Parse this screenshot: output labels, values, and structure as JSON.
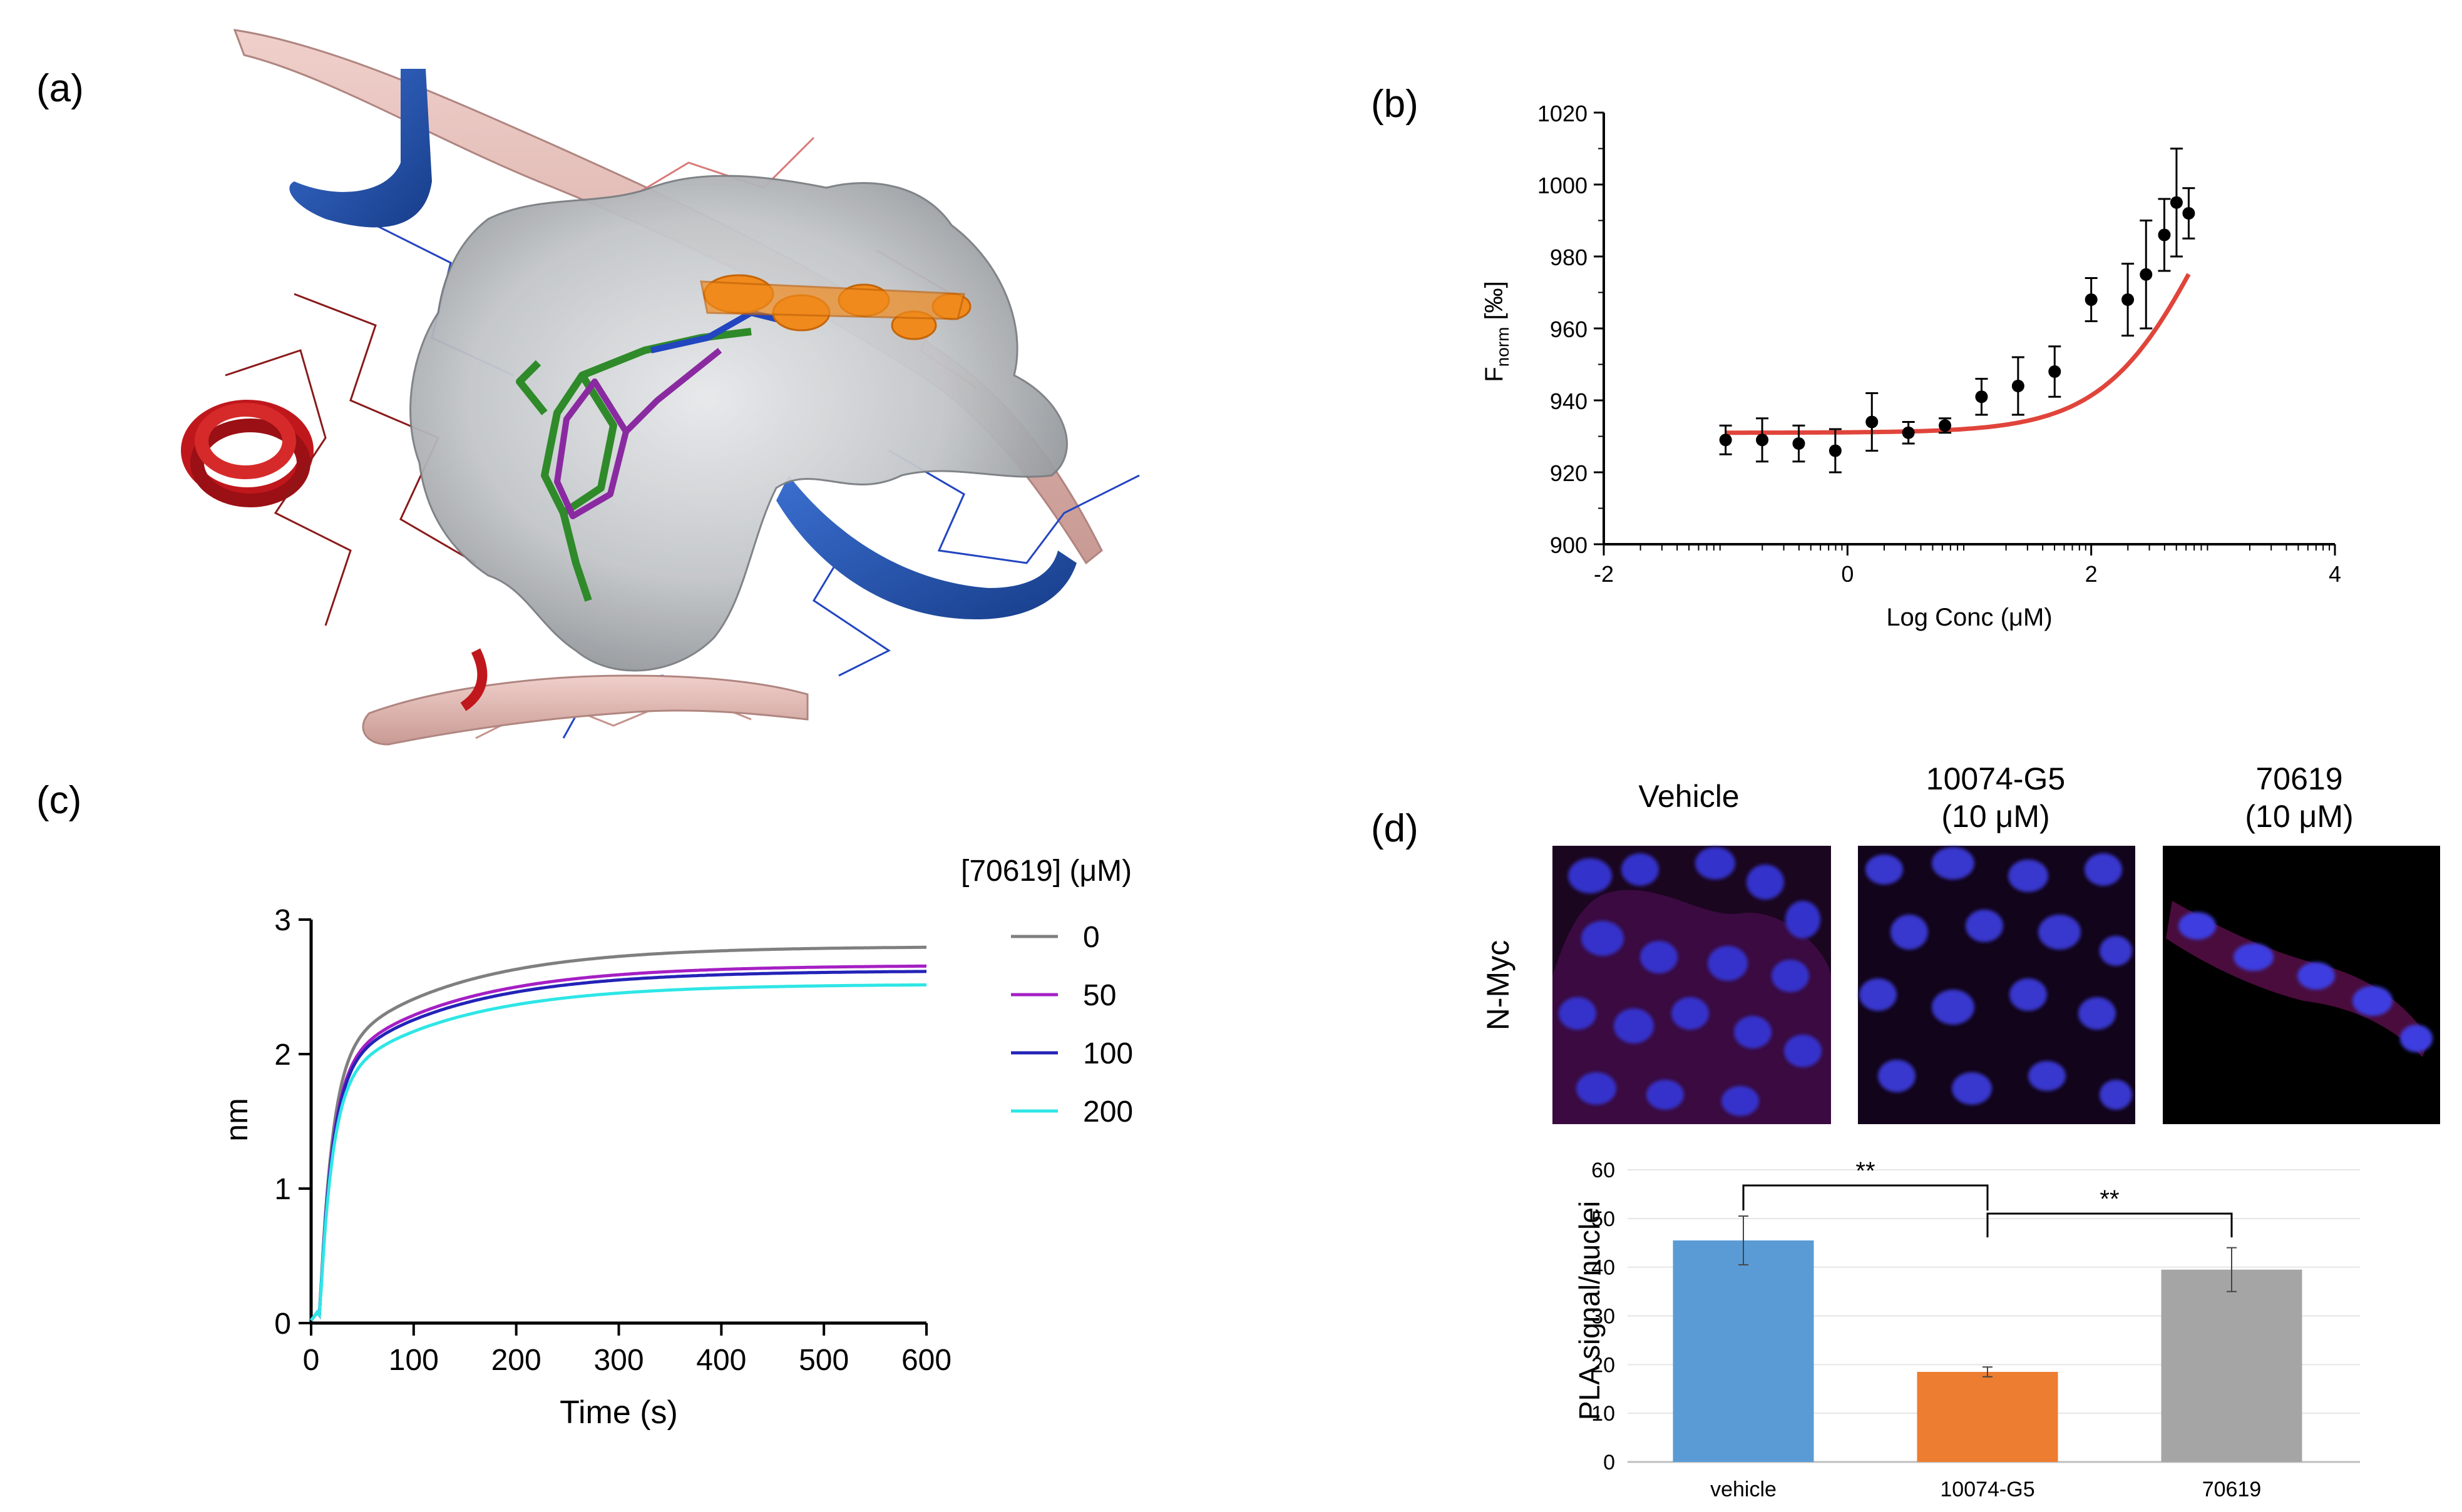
{
  "panel_labels": {
    "a": "(a)",
    "b": "(b)",
    "c": "(c)",
    "d": "(d)"
  },
  "colors": {
    "ribbon_pink": "#e3b8b2",
    "ribbon_blue": "#2857b0",
    "helix_red": "#c0171c",
    "surface_gray": "#b9bcbf",
    "ligand_green": "#2f8a2a",
    "ligand_purple": "#8a2aa0",
    "ligand_orange": "#f08a1c",
    "fit_red": "#e0443a",
    "bar_blue": "#5b9bd5",
    "bar_orange": "#ed7d31",
    "bar_gray": "#a5a5a5",
    "cell_nucleus": "#3a3ad8",
    "cell_background": "#000000"
  },
  "panel_d_images": {
    "row_label": "N-Myc",
    "headers": [
      {
        "line1": "Vehicle",
        "line2": ""
      },
      {
        "line1": "10074-G5",
        "line2": "(10 μM)"
      },
      {
        "line1": "70619",
        "line2": "(10 μM)"
      }
    ]
  },
  "chart_data": [
    {
      "id": "b",
      "type": "scatter",
      "title": "",
      "xlabel": "Log Conc (μM)",
      "ylabel_main": "F",
      "ylabel_sub": "norm",
      "ylabel_unit": " [‰]",
      "xlim": [
        -2,
        4
      ],
      "ylim": [
        900,
        1020
      ],
      "xticks": [
        -2,
        0,
        2,
        4
      ],
      "yticks": [
        900,
        920,
        940,
        960,
        980,
        1000,
        1020
      ],
      "points": [
        {
          "x": -1.0,
          "y": 929,
          "err": 4
        },
        {
          "x": -0.7,
          "y": 929,
          "err": 6
        },
        {
          "x": -0.4,
          "y": 928,
          "err": 5
        },
        {
          "x": -0.1,
          "y": 926,
          "err": 6
        },
        {
          "x": 0.2,
          "y": 934,
          "err": 8
        },
        {
          "x": 0.5,
          "y": 931,
          "err": 3
        },
        {
          "x": 0.8,
          "y": 933,
          "err": 2
        },
        {
          "x": 1.1,
          "y": 941,
          "err": 5
        },
        {
          "x": 1.4,
          "y": 944,
          "err": 8
        },
        {
          "x": 1.7,
          "y": 948,
          "err": 7
        },
        {
          "x": 2.0,
          "y": 968,
          "err": 6
        },
        {
          "x": 2.3,
          "y": 968,
          "err": 10
        },
        {
          "x": 2.45,
          "y": 975,
          "err": 15
        },
        {
          "x": 2.6,
          "y": 986,
          "err": 10
        },
        {
          "x": 2.7,
          "y": 995,
          "err": 15
        },
        {
          "x": 2.8,
          "y": 992,
          "err": 7
        }
      ],
      "fit": {
        "bottom": 931,
        "top": 1045,
        "logEC50": 3.0,
        "hill": 1.0,
        "x_range": [
          -1.0,
          2.8
        ]
      }
    },
    {
      "id": "c",
      "type": "line",
      "title": "",
      "xlabel": "Time (s)",
      "ylabel": "nm",
      "xlim": [
        0,
        600
      ],
      "ylim": [
        0,
        3
      ],
      "xticks": [
        0,
        100,
        200,
        300,
        400,
        500,
        600
      ],
      "yticks": [
        0,
        1,
        2,
        3
      ],
      "legend_title": "[70619] (μM)",
      "series": [
        {
          "name": "0",
          "color": "#7f7f7f",
          "plateau": 2.8
        },
        {
          "name": "50",
          "color": "#a51fc4",
          "plateau": 2.66
        },
        {
          "name": "100",
          "color": "#2323b8",
          "plateau": 2.62
        },
        {
          "name": "200",
          "color": "#2ee6e6",
          "plateau": 2.52
        }
      ]
    },
    {
      "id": "d",
      "type": "bar",
      "title": "",
      "xlabel": "",
      "ylabel": "PLA signal/nuclei",
      "ylim": [
        0,
        60
      ],
      "yticks": [
        0,
        10,
        20,
        30,
        40,
        50,
        60
      ],
      "categories": [
        "vehicle",
        "10074-G5",
        "70619"
      ],
      "values": [
        45.5,
        18.5,
        39.5
      ],
      "errors": [
        5,
        1,
        4.5
      ],
      "colors": [
        "#5b9bd5",
        "#ed7d31",
        "#a5a5a5"
      ],
      "significance": [
        {
          "from": 0,
          "to": 1,
          "label": "**"
        },
        {
          "from": 1,
          "to": 2,
          "label": "**"
        }
      ]
    }
  ]
}
